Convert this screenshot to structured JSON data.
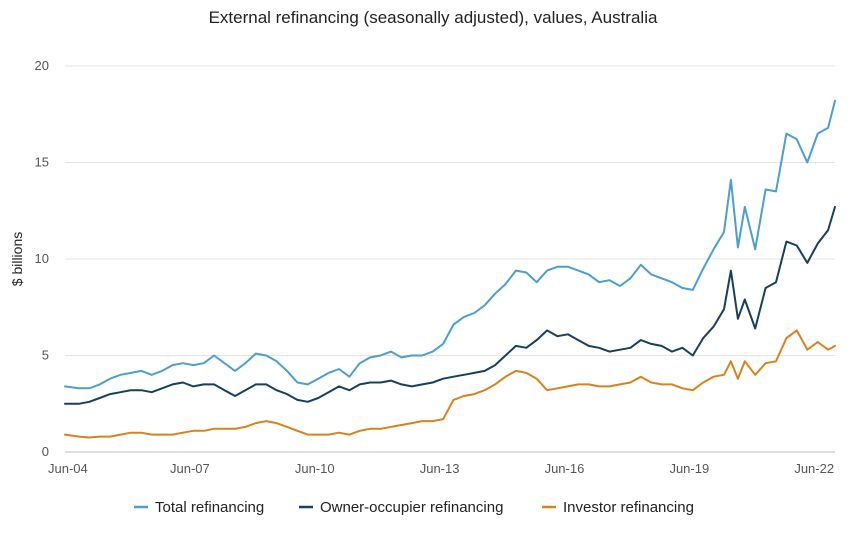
{
  "chart_data": {
    "type": "line",
    "title": "External refinancing (seasonally adjusted), values, Australia",
    "xlabel": "",
    "ylabel": "$ billions",
    "x_ticks": [
      "Jun-04",
      "Jun-07",
      "Jun-10",
      "Jun-13",
      "Jun-16",
      "Jun-19",
      "Jun-22"
    ],
    "y_ticks": [
      "0",
      "5",
      "10",
      "15",
      "20"
    ],
    "ylim": [
      0,
      20
    ],
    "xlim": [
      "2004-06",
      "2022-12"
    ],
    "grid": "horizontal",
    "legend_position": "bottom",
    "series": [
      {
        "name": "Total refinancing",
        "color": "#4a9fcf",
        "points": [
          [
            "2004-06",
            3.4
          ],
          [
            "2004-10",
            3.3
          ],
          [
            "2005-01",
            3.3
          ],
          [
            "2005-04",
            3.5
          ],
          [
            "2005-07",
            3.8
          ],
          [
            "2005-10",
            4.0
          ],
          [
            "2006-01",
            4.1
          ],
          [
            "2006-04",
            4.2
          ],
          [
            "2006-07",
            4.0
          ],
          [
            "2006-10",
            4.2
          ],
          [
            "2007-01",
            4.5
          ],
          [
            "2007-04",
            4.6
          ],
          [
            "2007-07",
            4.5
          ],
          [
            "2007-10",
            4.6
          ],
          [
            "2008-01",
            5.0
          ],
          [
            "2008-04",
            4.6
          ],
          [
            "2008-07",
            4.2
          ],
          [
            "2008-10",
            4.6
          ],
          [
            "2009-01",
            5.1
          ],
          [
            "2009-04",
            5.0
          ],
          [
            "2009-07",
            4.7
          ],
          [
            "2009-10",
            4.2
          ],
          [
            "2010-01",
            3.6
          ],
          [
            "2010-04",
            3.5
          ],
          [
            "2010-07",
            3.8
          ],
          [
            "2010-10",
            4.1
          ],
          [
            "2011-01",
            4.3
          ],
          [
            "2011-04",
            3.9
          ],
          [
            "2011-07",
            4.6
          ],
          [
            "2011-10",
            4.9
          ],
          [
            "2012-01",
            5.0
          ],
          [
            "2012-04",
            5.2
          ],
          [
            "2012-07",
            4.9
          ],
          [
            "2012-10",
            5.0
          ],
          [
            "2013-01",
            5.0
          ],
          [
            "2013-04",
            5.2
          ],
          [
            "2013-07",
            5.6
          ],
          [
            "2013-10",
            6.6
          ],
          [
            "2014-01",
            7.0
          ],
          [
            "2014-04",
            7.2
          ],
          [
            "2014-07",
            7.6
          ],
          [
            "2014-10",
            8.2
          ],
          [
            "2015-01",
            8.7
          ],
          [
            "2015-04",
            9.4
          ],
          [
            "2015-07",
            9.3
          ],
          [
            "2015-10",
            8.8
          ],
          [
            "2016-01",
            9.4
          ],
          [
            "2016-04",
            9.6
          ],
          [
            "2016-07",
            9.6
          ],
          [
            "2016-10",
            9.4
          ],
          [
            "2017-01",
            9.2
          ],
          [
            "2017-04",
            8.8
          ],
          [
            "2017-07",
            8.9
          ],
          [
            "2017-10",
            8.6
          ],
          [
            "2018-01",
            9.0
          ],
          [
            "2018-04",
            9.7
          ],
          [
            "2018-07",
            9.2
          ],
          [
            "2018-10",
            9.0
          ],
          [
            "2019-01",
            8.8
          ],
          [
            "2019-04",
            8.5
          ],
          [
            "2019-07",
            8.4
          ],
          [
            "2019-10",
            9.5
          ],
          [
            "2020-01",
            10.5
          ],
          [
            "2020-04",
            11.4
          ],
          [
            "2020-06",
            14.1
          ],
          [
            "2020-08",
            10.6
          ],
          [
            "2020-10",
            12.7
          ],
          [
            "2021-01",
            10.5
          ],
          [
            "2021-04",
            13.6
          ],
          [
            "2021-07",
            13.5
          ],
          [
            "2021-10",
            16.5
          ],
          [
            "2022-01",
            16.2
          ],
          [
            "2022-04",
            15.0
          ],
          [
            "2022-07",
            16.5
          ],
          [
            "2022-10",
            16.8
          ],
          [
            "2022-12",
            18.2
          ]
        ]
      },
      {
        "name": "Owner-occupier refinancing",
        "color": "#15405e",
        "points": [
          [
            "2004-06",
            2.5
          ],
          [
            "2004-10",
            2.5
          ],
          [
            "2005-01",
            2.6
          ],
          [
            "2005-04",
            2.8
          ],
          [
            "2005-07",
            3.0
          ],
          [
            "2005-10",
            3.1
          ],
          [
            "2006-01",
            3.2
          ],
          [
            "2006-04",
            3.2
          ],
          [
            "2006-07",
            3.1
          ],
          [
            "2006-10",
            3.3
          ],
          [
            "2007-01",
            3.5
          ],
          [
            "2007-04",
            3.6
          ],
          [
            "2007-07",
            3.4
          ],
          [
            "2007-10",
            3.5
          ],
          [
            "2008-01",
            3.5
          ],
          [
            "2008-04",
            3.2
          ],
          [
            "2008-07",
            2.9
          ],
          [
            "2008-10",
            3.2
          ],
          [
            "2009-01",
            3.5
          ],
          [
            "2009-04",
            3.5
          ],
          [
            "2009-07",
            3.2
          ],
          [
            "2009-10",
            3.0
          ],
          [
            "2010-01",
            2.7
          ],
          [
            "2010-04",
            2.6
          ],
          [
            "2010-07",
            2.8
          ],
          [
            "2010-10",
            3.1
          ],
          [
            "2011-01",
            3.4
          ],
          [
            "2011-04",
            3.2
          ],
          [
            "2011-07",
            3.5
          ],
          [
            "2011-10",
            3.6
          ],
          [
            "2012-01",
            3.6
          ],
          [
            "2012-04",
            3.7
          ],
          [
            "2012-07",
            3.5
          ],
          [
            "2012-10",
            3.4
          ],
          [
            "2013-01",
            3.5
          ],
          [
            "2013-04",
            3.6
          ],
          [
            "2013-07",
            3.8
          ],
          [
            "2013-10",
            3.9
          ],
          [
            "2014-01",
            4.0
          ],
          [
            "2014-04",
            4.1
          ],
          [
            "2014-07",
            4.2
          ],
          [
            "2014-10",
            4.5
          ],
          [
            "2015-01",
            5.0
          ],
          [
            "2015-04",
            5.5
          ],
          [
            "2015-07",
            5.4
          ],
          [
            "2015-10",
            5.8
          ],
          [
            "2016-01",
            6.3
          ],
          [
            "2016-04",
            6.0
          ],
          [
            "2016-07",
            6.1
          ],
          [
            "2016-10",
            5.8
          ],
          [
            "2017-01",
            5.5
          ],
          [
            "2017-04",
            5.4
          ],
          [
            "2017-07",
            5.2
          ],
          [
            "2017-10",
            5.3
          ],
          [
            "2018-01",
            5.4
          ],
          [
            "2018-04",
            5.8
          ],
          [
            "2018-07",
            5.6
          ],
          [
            "2018-10",
            5.5
          ],
          [
            "2019-01",
            5.2
          ],
          [
            "2019-04",
            5.4
          ],
          [
            "2019-07",
            5.0
          ],
          [
            "2019-10",
            5.9
          ],
          [
            "2020-01",
            6.5
          ],
          [
            "2020-04",
            7.4
          ],
          [
            "2020-06",
            9.4
          ],
          [
            "2020-08",
            6.9
          ],
          [
            "2020-10",
            7.9
          ],
          [
            "2021-01",
            6.4
          ],
          [
            "2021-04",
            8.5
          ],
          [
            "2021-07",
            8.8
          ],
          [
            "2021-10",
            10.9
          ],
          [
            "2022-01",
            10.7
          ],
          [
            "2022-04",
            9.8
          ],
          [
            "2022-07",
            10.8
          ],
          [
            "2022-10",
            11.5
          ],
          [
            "2022-12",
            12.7
          ]
        ]
      },
      {
        "name": "Investor refinancing",
        "color": "#d9821c",
        "points": [
          [
            "2004-06",
            0.9
          ],
          [
            "2004-10",
            0.8
          ],
          [
            "2005-01",
            0.75
          ],
          [
            "2005-04",
            0.8
          ],
          [
            "2005-07",
            0.8
          ],
          [
            "2005-10",
            0.9
          ],
          [
            "2006-01",
            1.0
          ],
          [
            "2006-04",
            1.0
          ],
          [
            "2006-07",
            0.9
          ],
          [
            "2006-10",
            0.9
          ],
          [
            "2007-01",
            0.9
          ],
          [
            "2007-04",
            1.0
          ],
          [
            "2007-07",
            1.1
          ],
          [
            "2007-10",
            1.1
          ],
          [
            "2008-01",
            1.2
          ],
          [
            "2008-04",
            1.2
          ],
          [
            "2008-07",
            1.2
          ],
          [
            "2008-10",
            1.3
          ],
          [
            "2009-01",
            1.5
          ],
          [
            "2009-04",
            1.6
          ],
          [
            "2009-07",
            1.5
          ],
          [
            "2009-10",
            1.3
          ],
          [
            "2010-01",
            1.1
          ],
          [
            "2010-04",
            0.9
          ],
          [
            "2010-07",
            0.9
          ],
          [
            "2010-10",
            0.9
          ],
          [
            "2011-01",
            1.0
          ],
          [
            "2011-04",
            0.9
          ],
          [
            "2011-07",
            1.1
          ],
          [
            "2011-10",
            1.2
          ],
          [
            "2012-01",
            1.2
          ],
          [
            "2012-04",
            1.3
          ],
          [
            "2012-07",
            1.4
          ],
          [
            "2012-10",
            1.5
          ],
          [
            "2013-01",
            1.6
          ],
          [
            "2013-04",
            1.6
          ],
          [
            "2013-07",
            1.7
          ],
          [
            "2013-10",
            2.7
          ],
          [
            "2014-01",
            2.9
          ],
          [
            "2014-04",
            3.0
          ],
          [
            "2014-07",
            3.2
          ],
          [
            "2014-10",
            3.5
          ],
          [
            "2015-01",
            3.9
          ],
          [
            "2015-04",
            4.2
          ],
          [
            "2015-07",
            4.1
          ],
          [
            "2015-10",
            3.8
          ],
          [
            "2016-01",
            3.2
          ],
          [
            "2016-04",
            3.3
          ],
          [
            "2016-07",
            3.4
          ],
          [
            "2016-10",
            3.5
          ],
          [
            "2017-01",
            3.5
          ],
          [
            "2017-04",
            3.4
          ],
          [
            "2017-07",
            3.4
          ],
          [
            "2017-10",
            3.5
          ],
          [
            "2018-01",
            3.6
          ],
          [
            "2018-04",
            3.9
          ],
          [
            "2018-07",
            3.6
          ],
          [
            "2018-10",
            3.5
          ],
          [
            "2019-01",
            3.5
          ],
          [
            "2019-04",
            3.3
          ],
          [
            "2019-07",
            3.2
          ],
          [
            "2019-10",
            3.6
          ],
          [
            "2020-01",
            3.9
          ],
          [
            "2020-04",
            4.0
          ],
          [
            "2020-06",
            4.7
          ],
          [
            "2020-08",
            3.8
          ],
          [
            "2020-10",
            4.7
          ],
          [
            "2021-01",
            4.0
          ],
          [
            "2021-04",
            4.6
          ],
          [
            "2021-07",
            4.7
          ],
          [
            "2021-10",
            5.9
          ],
          [
            "2022-01",
            6.3
          ],
          [
            "2022-04",
            5.3
          ],
          [
            "2022-07",
            5.7
          ],
          [
            "2022-10",
            5.3
          ],
          [
            "2022-12",
            5.5
          ]
        ]
      }
    ]
  }
}
